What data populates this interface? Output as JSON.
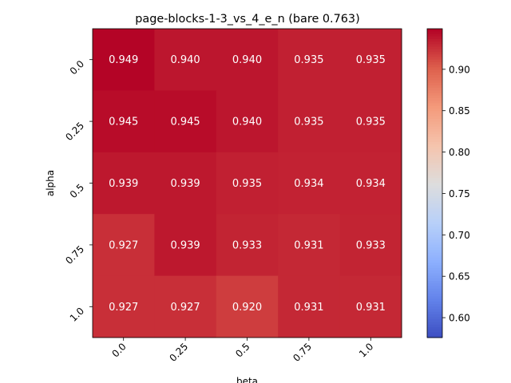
{
  "chart_data": {
    "type": "heatmap",
    "title": "page-blocks-1-3_vs_4_e_n (bare 0.763)",
    "xlabel": "beta",
    "ylabel": "alpha",
    "x_categories": [
      "0.0",
      "0.25",
      "0.5",
      "0.75",
      "1.0"
    ],
    "y_categories": [
      "0.0",
      "0.25",
      "0.5",
      "0.75",
      "1.0"
    ],
    "values": [
      [
        0.949,
        0.94,
        0.94,
        0.935,
        0.935
      ],
      [
        0.945,
        0.945,
        0.94,
        0.935,
        0.935
      ],
      [
        0.939,
        0.939,
        0.935,
        0.934,
        0.934
      ],
      [
        0.927,
        0.939,
        0.933,
        0.931,
        0.933
      ],
      [
        0.927,
        0.927,
        0.92,
        0.931,
        0.931
      ]
    ],
    "value_labels": [
      [
        "0.949",
        "0.940",
        "0.940",
        "0.935",
        "0.935"
      ],
      [
        "0.945",
        "0.945",
        "0.940",
        "0.935",
        "0.935"
      ],
      [
        "0.939",
        "0.939",
        "0.935",
        "0.934",
        "0.934"
      ],
      [
        "0.927",
        "0.939",
        "0.933",
        "0.931",
        "0.933"
      ],
      [
        "0.927",
        "0.927",
        "0.920",
        "0.931",
        "0.931"
      ]
    ],
    "colormap": "coolwarm",
    "color_range": [
      0.576,
      0.949
    ],
    "colorbar_ticks": [
      "0.60",
      "0.65",
      "0.70",
      "0.75",
      "0.80",
      "0.85",
      "0.90"
    ],
    "colorbar_tick_values": [
      0.6,
      0.65,
      0.7,
      0.75,
      0.8,
      0.85,
      0.9
    ],
    "grid": false,
    "legend": "colorbar-right"
  }
}
